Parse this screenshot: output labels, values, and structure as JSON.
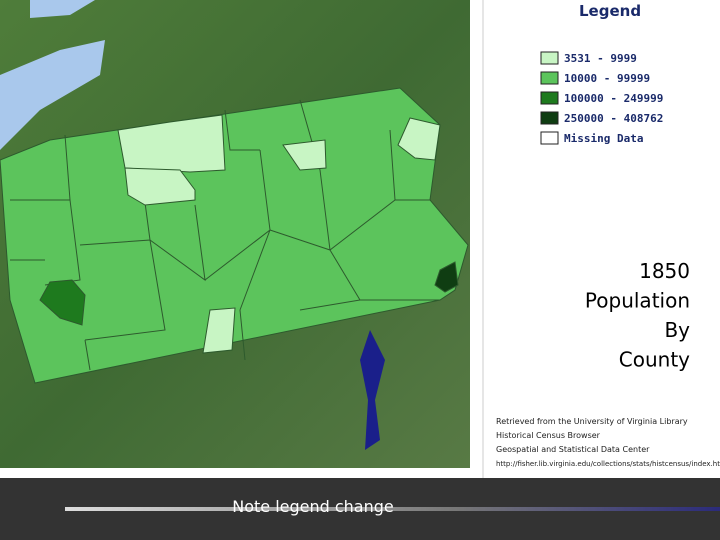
{
  "legend": {
    "title": "Legend",
    "items": [
      {
        "label": "3531 - 9999",
        "color": "#c8f5c4"
      },
      {
        "label": "10000 - 99999",
        "color": "#5cc45c"
      },
      {
        "label": "100000 - 249999",
        "color": "#1e7a1e"
      },
      {
        "label": "250000 - 408762",
        "color": "#0f3d12"
      },
      {
        "label": "Missing Data",
        "color": "#ffffff"
      }
    ]
  },
  "title_lines": [
    "1850",
    "Population",
    "By",
    "County"
  ],
  "source_lines": [
    "Retrieved from the University of Virginia Library",
    "Historical Census Browser",
    "Geospatial and Statistical Data Center",
    "http://fisher.lib.virginia.edu/collections/stats/histcensus/index.html"
  ],
  "note": "Note legend change"
}
